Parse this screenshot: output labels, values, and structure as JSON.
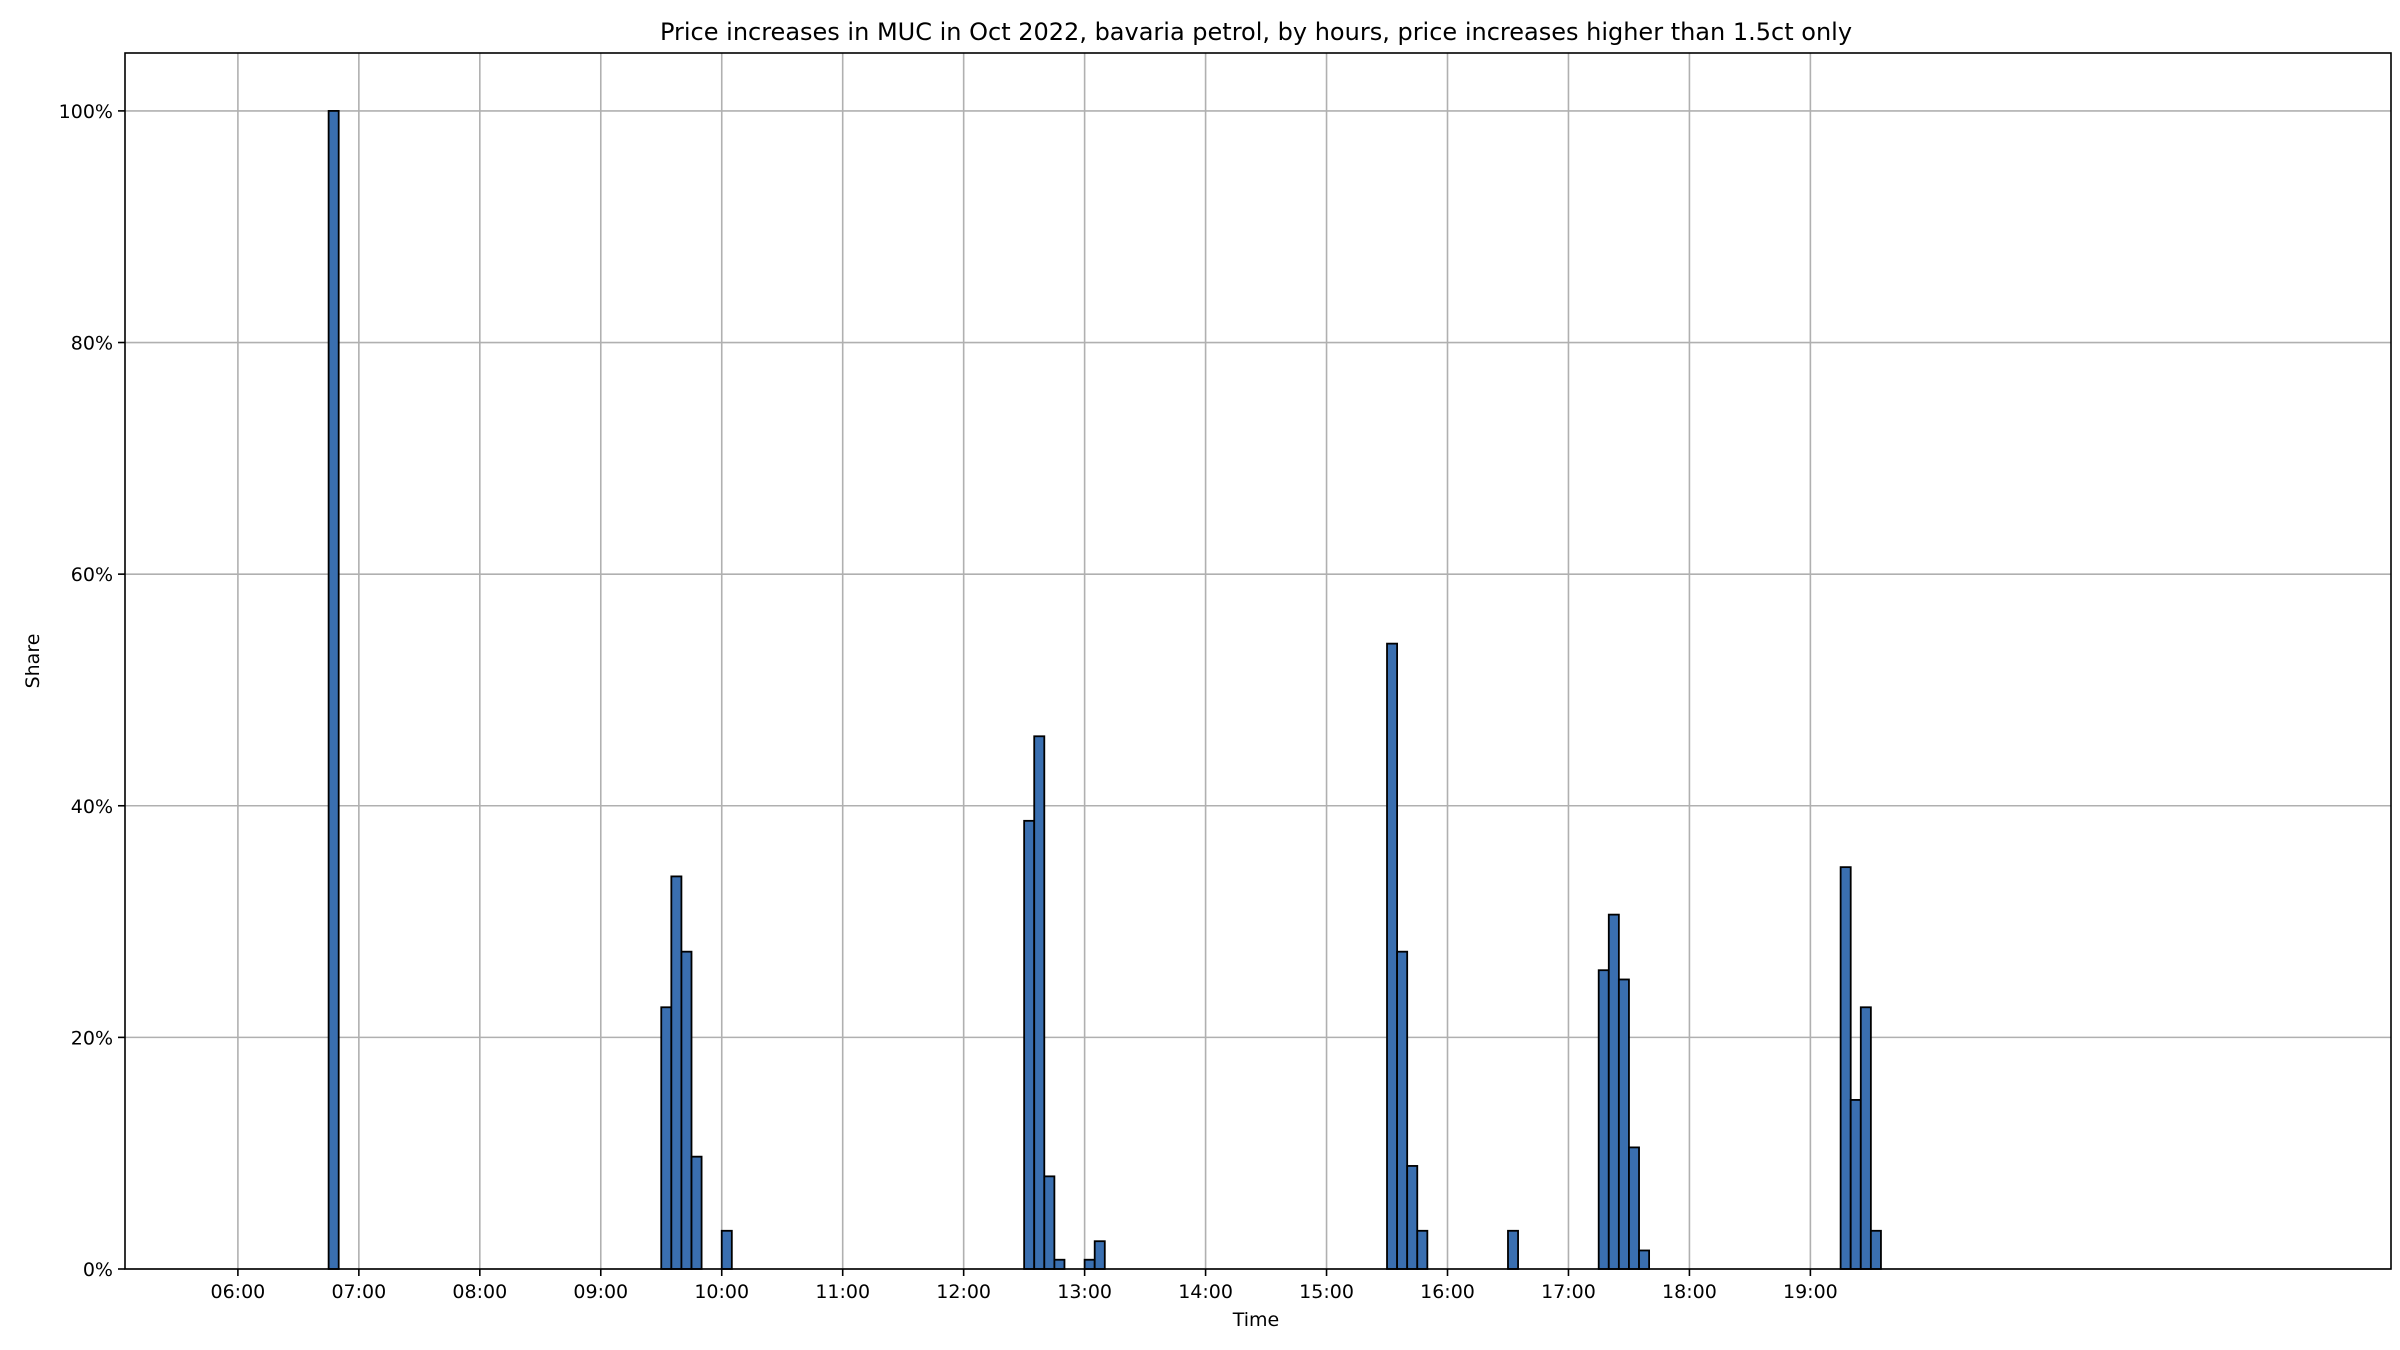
{
  "chart_data": {
    "type": "bar",
    "title": "Price increases in MUC in Oct 2022, bavaria petrol, by hours, price increases higher than 1.5ct only",
    "xlabel": "Time",
    "ylabel": "Share",
    "x_ticks": [
      "06:00",
      "07:00",
      "08:00",
      "09:00",
      "10:00",
      "11:00",
      "12:00",
      "13:00",
      "14:00",
      "15:00",
      "16:00",
      "17:00",
      "18:00",
      "19:00"
    ],
    "y_ticks": [
      "0%",
      "20%",
      "40%",
      "60%",
      "80%",
      "100%"
    ],
    "ylim": [
      0,
      105
    ],
    "xlim": [
      "05:04",
      "23:48"
    ],
    "grid": true,
    "bar_color": "#3a6fb0",
    "bar_edge_color": "#000000",
    "bar_width_minutes": 5,
    "series": [
      {
        "values": [
          {
            "t": "06:45",
            "v": 100.0
          },
          {
            "t": "09:30",
            "v": 22.6
          },
          {
            "t": "09:35",
            "v": 33.9
          },
          {
            "t": "09:40",
            "v": 27.4
          },
          {
            "t": "09:45",
            "v": 9.7
          },
          {
            "t": "10:00",
            "v": 3.3
          },
          {
            "t": "12:30",
            "v": 38.7
          },
          {
            "t": "12:35",
            "v": 46.0
          },
          {
            "t": "12:40",
            "v": 8.0
          },
          {
            "t": "12:45",
            "v": 0.8
          },
          {
            "t": "13:00",
            "v": 0.8
          },
          {
            "t": "13:05",
            "v": 2.4
          },
          {
            "t": "15:30",
            "v": 54.0
          },
          {
            "t": "15:35",
            "v": 27.4
          },
          {
            "t": "15:40",
            "v": 8.9
          },
          {
            "t": "15:45",
            "v": 3.3
          },
          {
            "t": "16:30",
            "v": 3.3
          },
          {
            "t": "17:15",
            "v": 25.8
          },
          {
            "t": "17:20",
            "v": 30.6
          },
          {
            "t": "17:25",
            "v": 25.0
          },
          {
            "t": "17:30",
            "v": 10.5
          },
          {
            "t": "17:35",
            "v": 1.6
          },
          {
            "t": "19:15",
            "v": 34.7
          },
          {
            "t": "19:20",
            "v": 14.6
          },
          {
            "t": "19:25",
            "v": 22.6
          },
          {
            "t": "19:30",
            "v": 3.3
          }
        ]
      }
    ]
  }
}
